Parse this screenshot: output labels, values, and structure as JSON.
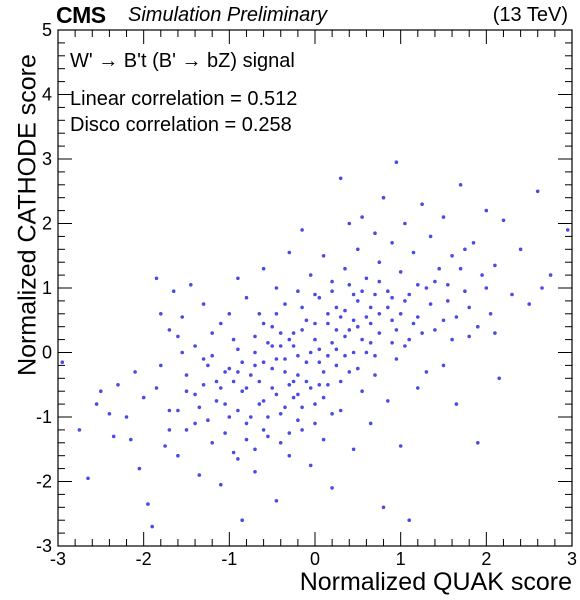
{
  "header": {
    "experiment": "CMS",
    "status": "Simulation Preliminary",
    "energy": "(13 TeV)"
  },
  "chart_data": {
    "type": "scatter",
    "title": "",
    "xlabel": "Normalized QUAK score",
    "ylabel": "Normalized CATHODE score",
    "xlim": [
      -3,
      3
    ],
    "ylim": [
      -3,
      5
    ],
    "xticks": [
      -3,
      -2,
      -1,
      0,
      1,
      2,
      3
    ],
    "yticks": [
      -3,
      -2,
      -1,
      0,
      1,
      2,
      3,
      4,
      5
    ],
    "grid": false,
    "marker_color": "#4a4ae6",
    "annotations": [
      "W' → B't (B' → bZ) signal",
      "Linear correlation = 0.512",
      "Disco correlation = 0.258"
    ],
    "series": [
      {
        "points": [
          [
            -2.95,
            -0.15
          ],
          [
            -2.75,
            -1.2
          ],
          [
            -2.65,
            -1.95
          ],
          [
            -2.55,
            -0.8
          ],
          [
            -2.5,
            -0.6
          ],
          [
            -2.4,
            -0.95
          ],
          [
            -2.35,
            -1.3
          ],
          [
            -2.3,
            -0.5
          ],
          [
            -2.2,
            -1.0
          ],
          [
            -2.15,
            -1.35
          ],
          [
            -2.1,
            -0.3
          ],
          [
            -2.05,
            -1.8
          ],
          [
            -2.0,
            -0.7
          ],
          [
            -1.95,
            -2.35
          ],
          [
            -1.9,
            -2.7
          ],
          [
            -1.85,
            -0.55
          ],
          [
            -1.85,
            1.15
          ],
          [
            -1.8,
            0.6
          ],
          [
            -1.8,
            -0.2
          ],
          [
            -1.75,
            -1.45
          ],
          [
            -1.7,
            0.35
          ],
          [
            -1.7,
            -0.9
          ],
          [
            -1.65,
            0.95
          ],
          [
            -1.6,
            0.25
          ],
          [
            -1.6,
            -1.6
          ],
          [
            -1.55,
            0.55
          ],
          [
            -1.5,
            -0.35
          ],
          [
            -1.5,
            -1.2
          ],
          [
            -1.45,
            1.05
          ],
          [
            -1.4,
            0.1
          ],
          [
            -1.4,
            -0.65
          ],
          [
            -1.35,
            -1.9
          ],
          [
            -1.3,
            0.75
          ],
          [
            -1.3,
            -0.1
          ],
          [
            -1.25,
            -1.05
          ],
          [
            -1.2,
            0.3
          ],
          [
            -1.2,
            -1.4
          ],
          [
            -1.15,
            -0.45
          ],
          [
            -1.1,
            0.45
          ],
          [
            -1.1,
            -2.05
          ],
          [
            -1.05,
            -0.8
          ],
          [
            -1.0,
            0.6
          ],
          [
            -1.0,
            -0.25
          ],
          [
            -0.95,
            -1.55
          ],
          [
            -0.9,
            1.15
          ],
          [
            -0.9,
            0.05
          ],
          [
            -0.85,
            -0.6
          ],
          [
            -0.85,
            -2.6
          ],
          [
            -0.8,
            0.85
          ],
          [
            -0.8,
            -1.1
          ],
          [
            -0.75,
            -0.35
          ],
          [
            -0.7,
            0.25
          ],
          [
            -0.7,
            -1.85
          ],
          [
            -0.65,
            0.6
          ],
          [
            -0.65,
            -0.8
          ],
          [
            -0.6,
            1.3
          ],
          [
            -0.6,
            -0.15
          ],
          [
            -0.55,
            -1.3
          ],
          [
            -0.5,
            0.4
          ],
          [
            -0.5,
            -0.55
          ],
          [
            -0.45,
            1.0
          ],
          [
            -0.45,
            -2.3
          ],
          [
            -0.4,
            0.1
          ],
          [
            -0.4,
            -0.95
          ],
          [
            -0.35,
            0.75
          ],
          [
            -0.35,
            -0.3
          ],
          [
            -0.3,
            1.55
          ],
          [
            -0.3,
            -1.6
          ],
          [
            -0.25,
            0.3
          ],
          [
            -0.25,
            -0.7
          ],
          [
            -0.2,
            0.95
          ],
          [
            -0.2,
            -0.05
          ],
          [
            -0.15,
            -1.2
          ],
          [
            -0.15,
            1.9
          ],
          [
            -0.1,
            0.5
          ],
          [
            -0.1,
            -0.45
          ],
          [
            -0.05,
            1.2
          ],
          [
            -0.05,
            -1.75
          ],
          [
            0.0,
            0.2
          ],
          [
            0.0,
            -0.8
          ],
          [
            0.05,
            0.85
          ],
          [
            0.05,
            -0.15
          ],
          [
            0.1,
            1.5
          ],
          [
            0.1,
            -1.35
          ],
          [
            0.15,
            0.45
          ],
          [
            0.15,
            -0.5
          ],
          [
            0.2,
            1.1
          ],
          [
            0.2,
            -2.1
          ],
          [
            0.25,
            0.05
          ],
          [
            0.25,
            0.7
          ],
          [
            0.3,
            2.7
          ],
          [
            0.3,
            -0.9
          ],
          [
            0.35,
            1.3
          ],
          [
            0.35,
            0.25
          ],
          [
            0.4,
            -0.3
          ],
          [
            0.4,
            2.0
          ],
          [
            0.45,
            0.9
          ],
          [
            0.45,
            -1.5
          ],
          [
            0.5,
            0.4
          ],
          [
            0.5,
            1.6
          ],
          [
            0.55,
            -0.6
          ],
          [
            0.55,
            2.1
          ],
          [
            0.6,
            1.15
          ],
          [
            0.6,
            0.0
          ],
          [
            0.65,
            -1.1
          ],
          [
            0.65,
            0.7
          ],
          [
            0.7,
            1.85
          ],
          [
            0.7,
            -0.35
          ],
          [
            0.75,
            1.4
          ],
          [
            0.75,
            0.3
          ],
          [
            0.8,
            2.4
          ],
          [
            0.8,
            -2.4
          ],
          [
            0.85,
            0.95
          ],
          [
            0.85,
            -0.75
          ],
          [
            0.9,
            1.7
          ],
          [
            0.9,
            0.5
          ],
          [
            0.95,
            2.95
          ],
          [
            0.95,
            -0.1
          ],
          [
            1.0,
            1.25
          ],
          [
            1.0,
            -1.45
          ],
          [
            1.05,
            0.8
          ],
          [
            1.05,
            2.0
          ],
          [
            1.1,
            0.2
          ],
          [
            1.1,
            -2.6
          ],
          [
            1.15,
            1.55
          ],
          [
            1.2,
            0.55
          ],
          [
            1.2,
            -0.55
          ],
          [
            1.25,
            2.3
          ],
          [
            1.3,
            1.0
          ],
          [
            1.3,
            -0.3
          ],
          [
            1.35,
            1.8
          ],
          [
            1.4,
            0.35
          ],
          [
            1.45,
            1.3
          ],
          [
            1.5,
            -0.2
          ],
          [
            1.5,
            2.1
          ],
          [
            1.55,
            0.8
          ],
          [
            1.6,
            1.5
          ],
          [
            1.65,
            -0.8
          ],
          [
            1.7,
            2.6
          ],
          [
            1.75,
            0.95
          ],
          [
            1.8,
            0.25
          ],
          [
            1.85,
            1.7
          ],
          [
            1.9,
            -1.4
          ],
          [
            1.95,
            1.2
          ],
          [
            2.0,
            2.2
          ],
          [
            2.05,
            0.6
          ],
          [
            2.1,
            1.35
          ],
          [
            2.15,
            -0.4
          ],
          [
            2.2,
            2.05
          ],
          [
            2.3,
            0.9
          ],
          [
            2.4,
            1.6
          ],
          [
            2.5,
            0.75
          ],
          [
            2.6,
            2.5
          ],
          [
            2.65,
            1.0
          ],
          [
            2.75,
            1.2
          ],
          [
            2.95,
            1.9
          ],
          [
            -0.8,
            -0.55
          ],
          [
            -0.7,
            -0.2
          ],
          [
            -0.6,
            -0.75
          ],
          [
            -0.55,
            0.15
          ],
          [
            -0.5,
            -0.25
          ],
          [
            -0.45,
            -0.65
          ],
          [
            -0.4,
            0.3
          ],
          [
            -0.35,
            -0.1
          ],
          [
            -0.3,
            -0.5
          ],
          [
            -0.25,
            0.1
          ],
          [
            -0.2,
            -0.35
          ],
          [
            -0.15,
            0.35
          ],
          [
            -0.1,
            -0.15
          ],
          [
            -0.05,
            -0.55
          ],
          [
            0.0,
            0.45
          ],
          [
            0.05,
            0.05
          ],
          [
            0.1,
            -0.3
          ],
          [
            0.15,
            0.6
          ],
          [
            0.2,
            0.15
          ],
          [
            0.25,
            -0.2
          ],
          [
            0.3,
            0.55
          ],
          [
            0.35,
            -0.05
          ],
          [
            0.4,
            0.35
          ],
          [
            0.45,
            0.0
          ],
          [
            0.5,
            0.8
          ],
          [
            0.55,
            0.2
          ],
          [
            0.6,
            0.55
          ],
          [
            0.65,
            0.15
          ],
          [
            0.7,
            0.9
          ],
          [
            0.75,
            0.6
          ],
          [
            -0.95,
            -0.45
          ],
          [
            -0.9,
            -0.9
          ],
          [
            -0.85,
            -0.15
          ],
          [
            -0.75,
            -1.0
          ],
          [
            -0.65,
            -0.45
          ],
          [
            -0.55,
            -1.0
          ],
          [
            -0.45,
            -0.1
          ],
          [
            -0.35,
            -0.85
          ],
          [
            -0.25,
            -0.45
          ],
          [
            -0.15,
            -0.85
          ],
          [
            -0.05,
            0.0
          ],
          [
            0.05,
            -0.5
          ],
          [
            0.15,
            -0.05
          ],
          [
            0.25,
            0.35
          ],
          [
            0.35,
            0.65
          ],
          [
            0.45,
            0.5
          ],
          [
            0.55,
            0.95
          ],
          [
            0.65,
            0.45
          ],
          [
            0.75,
            1.1
          ],
          [
            0.85,
            0.7
          ],
          [
            -1.3,
            -0.5
          ],
          [
            -1.25,
            -0.2
          ],
          [
            -1.15,
            -0.75
          ],
          [
            -1.05,
            -0.3
          ],
          [
            -1.0,
            -1.0
          ],
          [
            -0.95,
            0.2
          ],
          [
            -0.9,
            -0.3
          ],
          [
            -1.2,
            -0.05
          ],
          [
            -1.1,
            -0.55
          ],
          [
            -1.35,
            -0.85
          ],
          [
            0.9,
            0.85
          ],
          [
            0.95,
            0.35
          ],
          [
            1.0,
            0.6
          ],
          [
            1.05,
            0.1
          ],
          [
            1.1,
            0.9
          ],
          [
            1.15,
            0.45
          ],
          [
            1.2,
            1.05
          ],
          [
            1.25,
            0.3
          ],
          [
            1.35,
            0.75
          ],
          [
            1.4,
            1.1
          ],
          [
            -0.6,
            0.45
          ],
          [
            -0.45,
            0.6
          ],
          [
            -0.3,
            0.2
          ],
          [
            -0.15,
            0.7
          ],
          [
            0.0,
            0.9
          ],
          [
            0.2,
            0.95
          ],
          [
            0.4,
            1.05
          ],
          [
            -0.7,
            0.0
          ],
          [
            -0.5,
            0.1
          ],
          [
            -0.2,
            -0.65
          ],
          [
            0.1,
            -0.7
          ],
          [
            0.3,
            -0.45
          ],
          [
            0.5,
            -0.25
          ],
          [
            0.7,
            -0.05
          ],
          [
            0.9,
            0.15
          ],
          [
            -1.5,
            -0.6
          ],
          [
            -1.6,
            -0.9
          ],
          [
            -1.4,
            -1.1
          ],
          [
            -1.7,
            -1.2
          ],
          [
            -1.55,
            0.0
          ],
          [
            -0.8,
            -1.35
          ],
          [
            -0.6,
            -1.2
          ],
          [
            -0.4,
            -1.4
          ],
          [
            -0.2,
            -1.05
          ],
          [
            0.0,
            -1.1
          ],
          [
            0.2,
            -0.95
          ],
          [
            -1.05,
            -1.25
          ],
          [
            -0.9,
            -1.65
          ],
          [
            -0.7,
            -1.5
          ],
          [
            -0.3,
            -1.25
          ],
          [
            1.5,
            0.5
          ],
          [
            1.6,
            0.2
          ],
          [
            1.7,
            1.3
          ],
          [
            1.8,
            0.7
          ],
          [
            1.9,
            0.4
          ],
          [
            2.0,
            1.0
          ],
          [
            2.1,
            0.3
          ],
          [
            1.55,
            1.05
          ],
          [
            1.65,
            0.55
          ],
          [
            1.75,
            1.6
          ]
        ]
      }
    ]
  }
}
